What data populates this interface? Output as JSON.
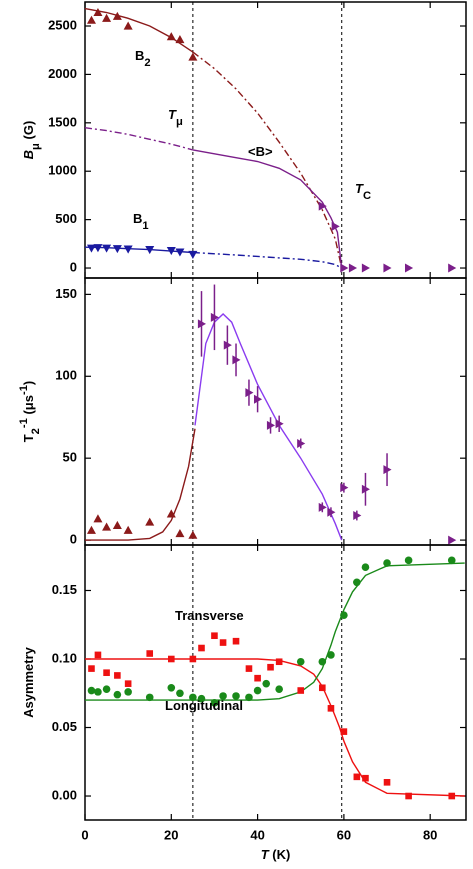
{
  "chart_data": [
    {
      "type": "scatter",
      "xlim": [
        0,
        88.3
      ],
      "ylim": [
        -103,
        2748
      ],
      "yticks": [
        0,
        500,
        1000,
        1500,
        2000,
        2500
      ],
      "ylabel": [
        {
          "text": "B",
          "italic": true
        },
        {
          "text": "μ",
          "sub": true
        },
        {
          "text": " (G)"
        }
      ],
      "vlines": [
        25,
        59.5
      ],
      "series": [
        {
          "color": "#8b1a1a",
          "marker": "triangle-up",
          "x": [
            1.5,
            3,
            5,
            7.5,
            10,
            20,
            22,
            25
          ],
          "values": [
            2560,
            2640,
            2580,
            2600,
            2500,
            2390,
            2360,
            2180
          ]
        },
        {
          "color": "#1a1aa0",
          "marker": "triangle-down",
          "x": [
            1.5,
            3,
            5,
            7.5,
            10,
            15,
            20,
            22,
            25
          ],
          "values": [
            205,
            210,
            205,
            200,
            195,
            190,
            180,
            165,
            140
          ]
        },
        {
          "color": "#7b1f8a",
          "marker": "triangle-right",
          "x": [
            55,
            58,
            60,
            62,
            65,
            70,
            75,
            85
          ],
          "values": [
            640,
            430,
            0,
            0,
            0,
            0,
            0,
            0
          ]
        }
      ],
      "fits": [
        {
          "color": "#8b1a1a",
          "dash": false,
          "x": [
            0,
            5,
            10,
            15,
            20,
            25
          ],
          "values": [
            2680,
            2640,
            2580,
            2500,
            2380,
            2230
          ]
        },
        {
          "color": "#8b1a1a",
          "dash": true,
          "x": [
            25,
            30,
            35,
            40,
            45,
            50,
            55,
            58,
            59.5
          ],
          "values": [
            2230,
            2060,
            1850,
            1600,
            1300,
            980,
            600,
            300,
            0
          ]
        },
        {
          "color": "#7b1f8a",
          "dash": true,
          "x": [
            0,
            5,
            10,
            15,
            20,
            25
          ],
          "values": [
            1450,
            1420,
            1380,
            1330,
            1280,
            1220
          ]
        },
        {
          "color": "#7b1f8a",
          "dash": false,
          "x": [
            25,
            30,
            35,
            40,
            45,
            50,
            55,
            57,
            58.5,
            59.5
          ],
          "values": [
            1220,
            1180,
            1140,
            1100,
            1030,
            910,
            680,
            520,
            370,
            0
          ]
        },
        {
          "color": "#1a1aa0",
          "dash": false,
          "x": [
            0,
            5,
            10,
            15,
            20,
            25
          ],
          "values": [
            215,
            210,
            200,
            190,
            175,
            160
          ]
        },
        {
          "color": "#1a1aa0",
          "dash": true,
          "x": [
            25,
            35,
            45,
            50,
            55,
            58,
            59.5
          ],
          "values": [
            160,
            135,
            105,
            90,
            65,
            35,
            0
          ]
        }
      ],
      "annotations": [
        {
          "color": "#8b1a1a",
          "parts": [
            {
              "text": "B"
            },
            {
              "text": "2",
              "sub": true
            }
          ]
        },
        {
          "color": "#000000",
          "parts": [
            {
              "text": "T",
              "italic": true
            },
            {
              "text": "μ",
              "sub": true
            }
          ]
        },
        {
          "color": "#7b1f8a",
          "parts": [
            {
              "text": "<B>"
            }
          ]
        },
        {
          "color": "#000000",
          "parts": [
            {
              "text": "T",
              "italic": true
            },
            {
              "text": "C",
              "sub": true
            }
          ]
        },
        {
          "color": "#1a1aa0",
          "parts": [
            {
              "text": "B"
            },
            {
              "text": "1",
              "sub": true
            }
          ]
        }
      ]
    },
    {
      "type": "scatter",
      "xlim": [
        0,
        88.3
      ],
      "ylim": [
        -3,
        160
      ],
      "yticks": [
        0,
        50,
        100,
        150
      ],
      "ylabel": [
        {
          "text": "T"
        },
        {
          "text": "2",
          "sub": true
        },
        {
          "text": "-1",
          "sup": true
        },
        {
          "text": " (μs"
        },
        {
          "text": "-1",
          "sup": true
        },
        {
          "text": ")"
        }
      ],
      "vlines": [
        25,
        59.5
      ],
      "series": [
        {
          "color": "#8b1a1a",
          "marker": "triangle-up",
          "x": [
            1.5,
            3,
            5,
            7.5,
            10,
            15,
            20,
            22,
            25
          ],
          "values": [
            6,
            13,
            8,
            9,
            6,
            11,
            16,
            4,
            3
          ]
        },
        {
          "color": "#7b1f8a",
          "marker": "triangle-right",
          "x": [
            27,
            30,
            33,
            35,
            38,
            40,
            43,
            45,
            50,
            55,
            57,
            60,
            63,
            65,
            70,
            85
          ],
          "values": [
            132,
            136,
            119,
            110,
            90,
            86,
            70,
            71,
            59,
            20,
            17,
            32,
            15,
            31,
            43,
            0
          ],
          "errors": [
            20,
            20,
            12,
            10,
            8,
            8,
            5,
            5,
            3,
            3,
            3,
            3,
            3,
            10,
            10,
            0
          ]
        }
      ],
      "fits": [
        {
          "color": "#8b1a1a",
          "dash": false,
          "x": [
            0,
            10,
            15,
            18,
            20,
            22,
            24,
            25.5
          ],
          "values": [
            0,
            0,
            1,
            5,
            12,
            25,
            45,
            68
          ]
        },
        {
          "color": "#8a3cf0",
          "dash": false,
          "x": [
            25.5,
            27,
            28,
            30,
            32,
            34,
            36,
            40,
            45,
            50,
            55,
            58,
            59.5
          ],
          "values": [
            70,
            100,
            120,
            133,
            138,
            133,
            120,
            95,
            70,
            50,
            28,
            10,
            0
          ]
        }
      ],
      "annotations": []
    },
    {
      "type": "scatter",
      "xlim": [
        0,
        88.3
      ],
      "ylim": [
        -0.0175,
        0.1832
      ],
      "yticks": [
        {
          "value": 0,
          "label": "0.00"
        },
        {
          "value": 0.05,
          "label": "0.05"
        },
        {
          "value": 0.1,
          "label": "0.10"
        },
        {
          "value": 0.15,
          "label": "0.15"
        }
      ],
      "xticks": [
        0,
        20,
        40,
        60,
        80
      ],
      "xlabel": [
        {
          "text": "T",
          "italic": true
        },
        {
          "text": " (K)"
        }
      ],
      "ylabel": [
        {
          "text": "Asymmetry"
        }
      ],
      "vlines": [
        25,
        59.5
      ],
      "series": [
        {
          "color": "#ee1111",
          "marker": "square",
          "x": [
            1.5,
            3,
            5,
            7.5,
            10,
            15,
            20,
            25,
            27,
            30,
            32,
            35,
            38,
            40,
            43,
            45,
            50,
            55,
            57,
            60,
            63,
            65,
            70,
            75,
            85
          ],
          "values": [
            0.093,
            0.103,
            0.09,
            0.088,
            0.082,
            0.104,
            0.1,
            0.1,
            0.108,
            0.117,
            0.112,
            0.113,
            0.093,
            0.086,
            0.094,
            0.098,
            0.077,
            0.079,
            0.064,
            0.047,
            0.014,
            0.013,
            0.01,
            0,
            0
          ]
        },
        {
          "color": "#1a8a1a",
          "marker": "circle",
          "x": [
            1.5,
            3,
            5,
            7.5,
            10,
            15,
            20,
            22,
            25,
            27,
            30,
            32,
            35,
            38,
            40,
            42,
            45,
            50,
            55,
            57,
            60,
            63,
            65,
            70,
            75,
            85
          ],
          "values": [
            0.077,
            0.076,
            0.078,
            0.074,
            0.076,
            0.072,
            0.079,
            0.075,
            0.072,
            0.071,
            0.068,
            0.073,
            0.073,
            0.072,
            0.077,
            0.082,
            0.078,
            0.098,
            0.098,
            0.103,
            0.132,
            0.156,
            0.167,
            0.17,
            0.172,
            0.172
          ]
        }
      ],
      "fits": [
        {
          "color": "#ee1111",
          "dash": false,
          "x": [
            0,
            40,
            45,
            50,
            53,
            55,
            57,
            58,
            59,
            60,
            62,
            65,
            70,
            88
          ],
          "values": [
            0.1,
            0.1,
            0.099,
            0.095,
            0.089,
            0.08,
            0.066,
            0.058,
            0.05,
            0.04,
            0.025,
            0.01,
            0.002,
            0
          ]
        },
        {
          "color": "#1a8a1a",
          "dash": false,
          "x": [
            0,
            40,
            45,
            50,
            53,
            55,
            57,
            58,
            59,
            60,
            62,
            65,
            70,
            88
          ],
          "values": [
            0.07,
            0.07,
            0.071,
            0.076,
            0.083,
            0.093,
            0.11,
            0.12,
            0.128,
            0.136,
            0.149,
            0.161,
            0.168,
            0.17
          ]
        }
      ],
      "annotations": [
        {
          "color": "#ee1111",
          "parts": [
            {
              "text": "Transverse"
            }
          ]
        },
        {
          "color": "#1a8a1a",
          "parts": [
            {
              "text": "Longitudinal"
            }
          ]
        }
      ]
    }
  ]
}
